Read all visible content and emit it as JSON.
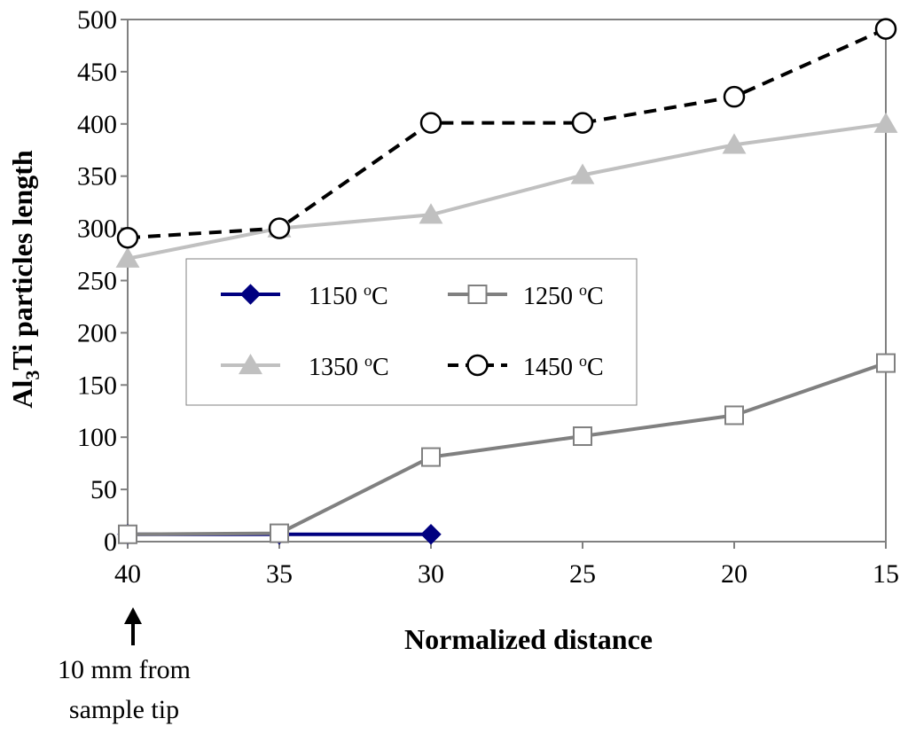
{
  "chart_data": {
    "type": "line",
    "title": "",
    "xlabel": "Normalized distance",
    "ylabel_main": "Al",
    "ylabel_sub": "3",
    "ylabel_rest": "Ti particles length",
    "x": [
      40,
      35,
      30,
      25,
      20,
      15
    ],
    "x_tick_labels": [
      "40",
      "35",
      "30",
      "25",
      "20",
      "15"
    ],
    "xlim": [
      40,
      15
    ],
    "ylim": [
      0,
      500
    ],
    "y_ticks": [
      0,
      50,
      100,
      150,
      200,
      250,
      300,
      350,
      400,
      450,
      500
    ],
    "y_tick_labels": [
      "0",
      "50",
      "100",
      "150",
      "200",
      "250",
      "300",
      "350",
      "400",
      "450",
      "500"
    ],
    "grid": false,
    "legend_position": "center-left",
    "series": [
      {
        "name": "1150",
        "unit_sup": "o",
        "unit": "C",
        "color": "#000080",
        "marker": "diamond",
        "dash": "solid",
        "x": [
          40,
          35,
          30
        ],
        "values": [
          7,
          7,
          7
        ]
      },
      {
        "name": "1250",
        "unit_sup": "o",
        "unit": "C",
        "color": "#808080",
        "marker": "square-open",
        "dash": "solid",
        "x": [
          40,
          35,
          30,
          25,
          20,
          15
        ],
        "values": [
          7,
          8,
          81,
          101,
          121,
          171
        ]
      },
      {
        "name": "1350",
        "unit_sup": "o",
        "unit": "C",
        "color": "#c0c0c0",
        "marker": "triangle",
        "dash": "solid",
        "x": [
          40,
          35,
          30,
          25,
          20,
          15
        ],
        "values": [
          271,
          300,
          313,
          351,
          380,
          400
        ]
      },
      {
        "name": "1450",
        "unit_sup": "o",
        "unit": "C",
        "color": "#000000",
        "marker": "circle-open",
        "dash": "dashed",
        "x": [
          40,
          35,
          30,
          25,
          20,
          15
        ],
        "values": [
          291,
          300,
          401,
          401,
          426,
          491
        ]
      }
    ],
    "annotation": {
      "line1": "10 mm from",
      "line2": "sample tip",
      "arrow_at_x": 40
    }
  }
}
